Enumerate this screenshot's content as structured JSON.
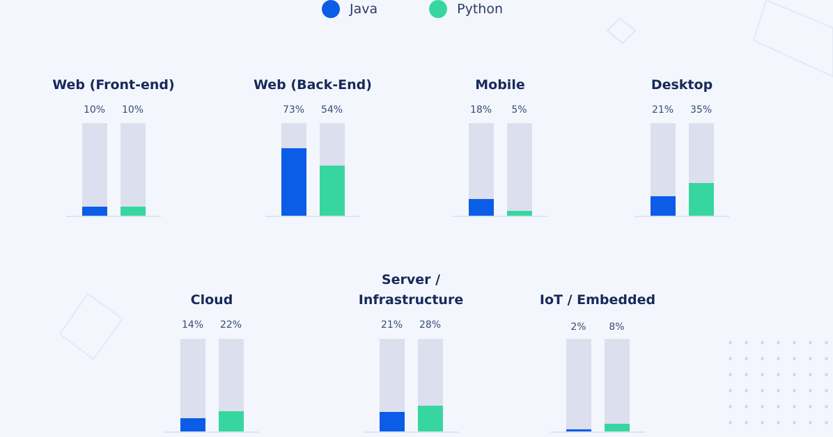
{
  "legend": [
    {
      "label": "Java",
      "color": "#0b5ce6"
    },
    {
      "label": "Python",
      "color": "#37d6a0"
    }
  ],
  "colors": {
    "java": "#0b5ce6",
    "python": "#37d6a0",
    "track": "#dcdfed",
    "title": "#17295a"
  },
  "chart_data": {
    "type": "bar",
    "series": [
      {
        "name": "Java",
        "values": [
          10,
          73,
          18,
          21,
          14,
          21,
          2
        ]
      },
      {
        "name": "Python",
        "values": [
          10,
          54,
          5,
          35,
          22,
          28,
          8
        ]
      }
    ],
    "categories": [
      "Web (Front-end)",
      "Web (Back-End)",
      "Mobile",
      "Desktop",
      "Cloud",
      "Server / Infrastructure",
      "IoT / Embedded"
    ],
    "ylim": [
      0,
      100
    ],
    "value_labels": [
      [
        "10%",
        "10%"
      ],
      [
        "73%",
        "54%"
      ],
      [
        "18%",
        "5%"
      ],
      [
        "21%",
        "35%"
      ],
      [
        "14%",
        "22%"
      ],
      [
        "21%",
        "28%"
      ],
      [
        "2%",
        "8%"
      ]
    ],
    "unit": "%",
    "legend_position": "top-center",
    "grid": false
  }
}
